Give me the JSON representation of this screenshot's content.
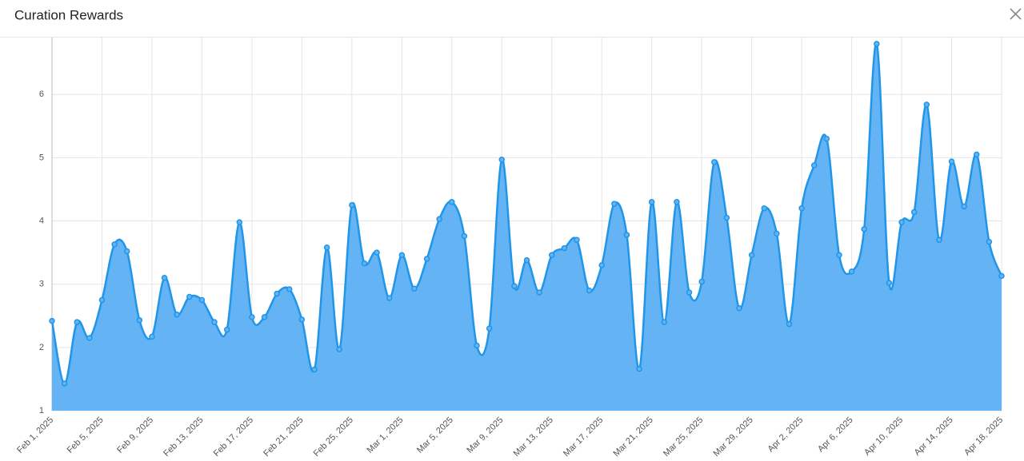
{
  "header": {
    "title": "Curation Rewards"
  },
  "chart_data": {
    "type": "area",
    "categories": [
      "Feb 1, 2025",
      null,
      null,
      null,
      "Feb 5, 2025",
      null,
      null,
      null,
      "Feb 9, 2025",
      null,
      null,
      null,
      "Feb 13, 2025",
      null,
      null,
      null,
      "Feb 17, 2025",
      null,
      null,
      null,
      "Feb 21, 2025",
      null,
      null,
      null,
      "Feb 25, 2025",
      null,
      null,
      null,
      "Mar 1, 2025",
      null,
      null,
      null,
      "Mar 5, 2025",
      null,
      null,
      null,
      "Mar 9, 2025",
      null,
      null,
      null,
      "Mar 13, 2025",
      null,
      null,
      null,
      "Mar 17, 2025",
      null,
      null,
      null,
      "Mar 21, 2025",
      null,
      null,
      null,
      "Mar 25, 2025",
      null,
      null,
      null,
      "Mar 29, 2025",
      null,
      null,
      null,
      "Apr 2, 2025",
      null,
      null,
      null,
      "Apr 6, 2025",
      null,
      null,
      null,
      "Apr 10, 2025",
      null,
      null,
      null,
      "Apr 14, 2025",
      null,
      null,
      null,
      "Apr 18, 2025"
    ],
    "values": [
      2.42,
      1.43,
      2.4,
      2.15,
      2.75,
      3.63,
      3.52,
      2.43,
      2.17,
      3.1,
      2.52,
      2.8,
      2.75,
      2.4,
      2.28,
      3.98,
      2.48,
      2.48,
      2.85,
      2.92,
      2.44,
      1.65,
      3.58,
      1.97,
      4.25,
      3.33,
      3.5,
      2.78,
      3.46,
      2.93,
      3.4,
      4.03,
      4.3,
      3.76,
      2.03,
      2.3,
      4.97,
      2.97,
      3.38,
      2.87,
      3.46,
      3.57,
      3.7,
      2.9,
      3.3,
      4.27,
      3.78,
      1.66,
      4.3,
      2.4,
      4.3,
      2.87,
      3.04,
      4.93,
      4.05,
      2.62,
      3.46,
      4.2,
      3.8,
      2.37,
      4.2,
      4.88,
      5.3,
      3.46,
      3.2,
      3.87,
      6.8,
      3.02,
      3.98,
      4.14,
      5.84,
      3.7,
      4.94,
      4.23,
      5.05,
      3.67,
      3.13
    ],
    "color": "#2196e8",
    "fill": "#63b3f5",
    "ylim": [
      1,
      6.9
    ],
    "yticks": [
      1,
      2,
      3,
      4,
      5,
      6
    ],
    "grid": true
  }
}
